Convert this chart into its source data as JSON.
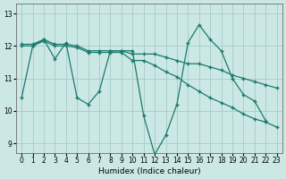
{
  "xlabel": "Humidex (Indice chaleur)",
  "bg_color": "#cce8e5",
  "grid_color": "#aacfcc",
  "line_color": "#1a7a6e",
  "xlim": [
    -0.5,
    23.5
  ],
  "ylim": [
    8.7,
    13.3
  ],
  "yticks": [
    9,
    10,
    11,
    12,
    13
  ],
  "xticks": [
    0,
    1,
    2,
    3,
    4,
    5,
    6,
    7,
    8,
    9,
    10,
    11,
    12,
    13,
    14,
    15,
    16,
    17,
    18,
    19,
    20,
    21,
    22,
    23
  ],
  "line1_x": [
    0,
    1,
    2,
    3,
    4,
    5,
    6,
    7,
    8,
    9,
    10,
    11,
    12,
    13,
    14,
    15,
    16,
    17,
    18,
    19,
    20,
    21,
    22
  ],
  "line1_y": [
    10.4,
    12.0,
    12.2,
    11.6,
    12.1,
    10.4,
    10.2,
    10.6,
    11.85,
    11.85,
    11.85,
    9.85,
    8.65,
    9.25,
    10.2,
    12.1,
    12.65,
    12.2,
    11.85,
    11.0,
    10.5,
    10.3,
    9.7
  ],
  "line2_x": [
    0,
    1,
    2,
    3,
    4,
    5,
    6,
    7,
    8,
    9,
    10,
    11,
    12,
    13,
    14,
    15,
    16,
    17,
    18,
    19,
    20,
    21,
    22,
    23
  ],
  "line2_y": [
    12.05,
    12.05,
    12.2,
    12.05,
    12.05,
    12.0,
    11.85,
    11.85,
    11.85,
    11.85,
    11.75,
    11.75,
    11.75,
    11.65,
    11.55,
    11.45,
    11.45,
    11.35,
    11.25,
    11.1,
    11.0,
    10.9,
    10.8,
    10.7
  ],
  "line3_x": [
    0,
    1,
    2,
    3,
    4,
    5,
    6,
    7,
    8,
    9,
    10,
    11,
    12,
    13,
    14,
    15,
    16,
    17,
    18,
    19,
    20,
    21,
    22,
    23
  ],
  "line3_y": [
    12.0,
    12.0,
    12.15,
    12.0,
    12.0,
    11.95,
    11.8,
    11.8,
    11.8,
    11.8,
    11.55,
    11.55,
    11.4,
    11.2,
    11.05,
    10.8,
    10.6,
    10.4,
    10.25,
    10.1,
    9.9,
    9.75,
    9.65,
    9.5
  ]
}
